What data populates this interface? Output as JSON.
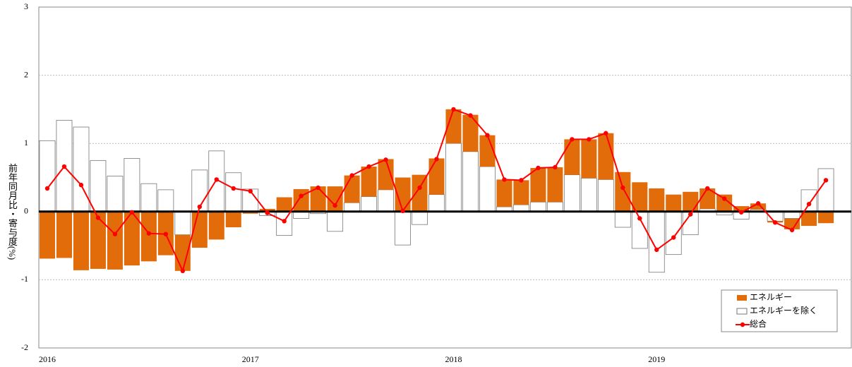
{
  "chart_data": {
    "type": "bar",
    "stacked": true,
    "ylabel": "前年同月比・寄与度(%)",
    "categories": [
      "2016",
      null,
      null,
      null,
      null,
      null,
      null,
      null,
      null,
      null,
      null,
      null,
      "2017",
      null,
      null,
      null,
      null,
      null,
      null,
      null,
      null,
      null,
      null,
      null,
      "2018",
      null,
      null,
      null,
      null,
      null,
      null,
      null,
      null,
      null,
      null,
      null,
      "2019",
      null,
      null,
      null,
      null,
      null,
      null,
      null,
      null,
      null,
      null
    ],
    "series": [
      {
        "name": "エネルギー",
        "color": "#e36c0a",
        "values": [
          -0.69,
          -0.68,
          -0.86,
          -0.84,
          -0.85,
          -0.79,
          -0.73,
          -0.64,
          -0.53,
          -0.53,
          -0.41,
          -0.23,
          -0.03,
          0.04,
          0.21,
          0.33,
          0.37,
          0.37,
          0.4,
          0.44,
          0.45,
          0.5,
          0.54,
          0.53,
          0.5,
          0.54,
          0.46,
          0.4,
          0.36,
          0.5,
          0.51,
          0.52,
          0.57,
          0.68,
          0.58,
          0.43,
          0.34,
          0.25,
          0.29,
          0.3,
          0.25,
          0.08,
          0.09,
          -0.02,
          -0.16,
          -0.21,
          -0.17
        ]
      },
      {
        "name": "エネルギーを除く",
        "color": "#ffffff",
        "values": [
          1.04,
          1.34,
          1.24,
          0.75,
          0.52,
          0.78,
          0.41,
          0.32,
          -0.34,
          0.61,
          0.89,
          0.57,
          0.33,
          -0.06,
          -0.35,
          -0.1,
          -0.03,
          -0.29,
          0.13,
          0.22,
          0.32,
          -0.49,
          -0.19,
          0.25,
          1.0,
          0.88,
          0.66,
          0.07,
          0.1,
          0.14,
          0.14,
          0.54,
          0.49,
          0.47,
          -0.23,
          -0.54,
          -0.89,
          -0.63,
          -0.34,
          0.04,
          -0.05,
          -0.11,
          0.03,
          -0.14,
          -0.1,
          0.32,
          0.63
        ]
      },
      {
        "name": "総合",
        "type": "line",
        "color": "#ff0000",
        "values": [
          0.34,
          0.66,
          0.39,
          -0.09,
          -0.33,
          -0.01,
          -0.32,
          -0.33,
          -0.87,
          0.07,
          0.47,
          0.34,
          0.3,
          -0.02,
          -0.14,
          0.23,
          0.35,
          0.09,
          0.53,
          0.66,
          0.76,
          0.01,
          0.35,
          0.77,
          1.5,
          1.41,
          1.12,
          0.47,
          0.46,
          0.64,
          0.65,
          1.06,
          1.06,
          1.15,
          0.35,
          -0.1,
          -0.56,
          -0.38,
          -0.04,
          0.34,
          0.19,
          -0.01,
          0.12,
          -0.16,
          -0.27,
          0.11,
          0.46
        ]
      }
    ],
    "ylim": [
      -2,
      3
    ],
    "yticks": [
      -2,
      -1,
      0,
      1,
      2,
      3
    ],
    "grid": true,
    "legend": "lower right"
  }
}
